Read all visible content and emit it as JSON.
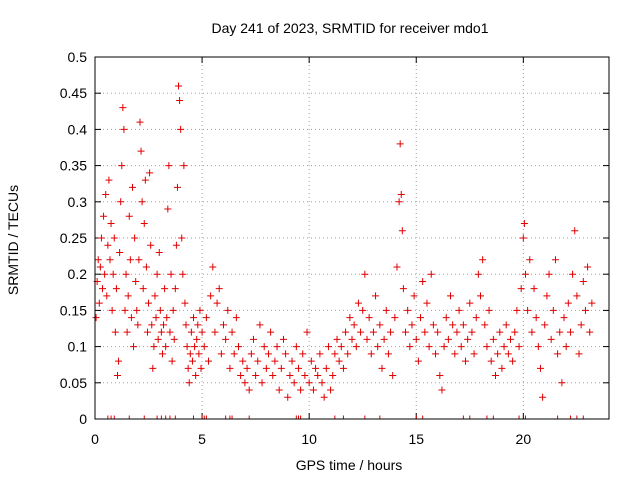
{
  "chart_data": {
    "type": "scatter",
    "title": "Day 241 of 2023, SRMTID for receiver mdo1",
    "xlabel": "GPS time / hours",
    "ylabel": "SRMTID / TECUs",
    "xlim": [
      0,
      24
    ],
    "ylim": [
      0,
      0.5
    ],
    "x_ticks": [
      "0",
      "5",
      "10",
      "15",
      "20"
    ],
    "y_ticks": [
      "0",
      "0.05",
      "0.1",
      "0.15",
      "0.2",
      "0.25",
      "0.3",
      "0.35",
      "0.4",
      "0.45",
      "0.5"
    ],
    "grid": true,
    "marker": "+",
    "series": [
      {
        "name": "SRMTID",
        "color": "#e00000",
        "points": [
          [
            0.05,
            0.14
          ],
          [
            0.1,
            0.19
          ],
          [
            0.15,
            0.22
          ],
          [
            0.2,
            0.16
          ],
          [
            0.25,
            0.21
          ],
          [
            0.3,
            0.25
          ],
          [
            0.35,
            0.18
          ],
          [
            0.4,
            0.28
          ],
          [
            0.45,
            0.2
          ],
          [
            0.5,
            0.31
          ],
          [
            0.55,
            0.17
          ],
          [
            0.6,
            0.24
          ],
          [
            0.65,
            0.33
          ],
          [
            0.7,
            0.22
          ],
          [
            0.75,
            0.27
          ],
          [
            0.8,
            0.15
          ],
          [
            0.85,
            0.2
          ],
          [
            0.9,
            0.25
          ],
          [
            0.95,
            0.12
          ],
          [
            1.0,
            0.18
          ],
          [
            1.05,
            0.06
          ],
          [
            1.1,
            0.08
          ],
          [
            1.15,
            0.23
          ],
          [
            1.2,
            0.3
          ],
          [
            1.25,
            0.35
          ],
          [
            1.3,
            0.43
          ],
          [
            1.35,
            0.4
          ],
          [
            1.4,
            0.15
          ],
          [
            1.45,
            0.2
          ],
          [
            1.5,
            0.12
          ],
          [
            1.55,
            0.17
          ],
          [
            1.6,
            0.28
          ],
          [
            1.65,
            0.22
          ],
          [
            1.7,
            0.14
          ],
          [
            1.75,
            0.32
          ],
          [
            1.8,
            0.1
          ],
          [
            1.85,
            0.25
          ],
          [
            1.9,
            0.19
          ],
          [
            1.95,
            0.15
          ],
          [
            2.0,
            0.13
          ],
          [
            2.05,
            0.22
          ],
          [
            2.1,
            0.41
          ],
          [
            2.15,
            0.37
          ],
          [
            2.2,
            0.3
          ],
          [
            2.25,
            0.18
          ],
          [
            2.3,
            0.27
          ],
          [
            2.35,
            0.33
          ],
          [
            2.4,
            0.21
          ],
          [
            2.45,
            0.12
          ],
          [
            2.5,
            0.16
          ],
          [
            2.55,
            0.34
          ],
          [
            2.6,
            0.24
          ],
          [
            2.65,
            0.13
          ],
          [
            2.7,
            0.07
          ],
          [
            2.75,
            0.1
          ],
          [
            2.8,
            0.17
          ],
          [
            2.85,
            0.14
          ],
          [
            2.9,
            0.2
          ],
          [
            2.95,
            0.11
          ],
          [
            3.0,
            0.23
          ],
          [
            3.05,
            0.15
          ],
          [
            3.1,
            0.12
          ],
          [
            3.15,
            0.09
          ],
          [
            3.2,
            0.13
          ],
          [
            3.25,
            0.18
          ],
          [
            3.3,
            0.1
          ],
          [
            3.35,
            0.14
          ],
          [
            3.4,
            0.29
          ],
          [
            3.45,
            0.35
          ],
          [
            3.5,
            0.12
          ],
          [
            3.55,
            0.2
          ],
          [
            3.6,
            0.08
          ],
          [
            3.65,
            0.15
          ],
          [
            3.7,
            0.11
          ],
          [
            3.75,
            0.18
          ],
          [
            3.8,
            0.24
          ],
          [
            3.85,
            0.32
          ],
          [
            3.9,
            0.46
          ],
          [
            3.95,
            0.44
          ],
          [
            4.0,
            0.4
          ],
          [
            4.05,
            0.25
          ],
          [
            4.1,
            0.2
          ],
          [
            4.15,
            0.35
          ],
          [
            4.2,
            0.16
          ],
          [
            4.25,
            0.13
          ],
          [
            4.3,
            0.1
          ],
          [
            4.35,
            0.07
          ],
          [
            4.4,
            0.05
          ],
          [
            4.45,
            0.09
          ],
          [
            4.5,
            0.12
          ],
          [
            4.55,
            0.08
          ],
          [
            4.6,
            0.14
          ],
          [
            4.65,
            0.1
          ],
          [
            4.7,
            0.06
          ],
          [
            4.75,
            0.11
          ],
          [
            4.8,
            0.13
          ],
          [
            4.85,
            0.09
          ],
          [
            4.9,
            0.15
          ],
          [
            4.95,
            0.07
          ],
          [
            5.0,
            0.12
          ],
          [
            5.1,
            0.1
          ],
          [
            5.2,
            0.14
          ],
          [
            5.3,
            0.08
          ],
          [
            5.4,
            0.17
          ],
          [
            5.5,
            0.21
          ],
          [
            5.6,
            0.12
          ],
          [
            5.7,
            0.16
          ],
          [
            5.8,
            0.18
          ],
          [
            5.9,
            0.09
          ],
          [
            6.0,
            0.13
          ],
          [
            6.1,
            0.11
          ],
          [
            6.2,
            0.15
          ],
          [
            6.3,
            0.07
          ],
          [
            6.4,
            0.12
          ],
          [
            6.5,
            0.09
          ],
          [
            6.6,
            0.14
          ],
          [
            6.7,
            0.1
          ],
          [
            6.8,
            0.06
          ],
          [
            6.9,
            0.08
          ],
          [
            7.0,
            0.05
          ],
          [
            7.1,
            0.07
          ],
          [
            7.2,
            0.04
          ],
          [
            7.3,
            0.09
          ],
          [
            7.4,
            0.11
          ],
          [
            7.5,
            0.06
          ],
          [
            7.6,
            0.08
          ],
          [
            7.7,
            0.13
          ],
          [
            7.8,
            0.05
          ],
          [
            7.9,
            0.1
          ],
          [
            8.0,
            0.07
          ],
          [
            8.1,
            0.09
          ],
          [
            8.2,
            0.12
          ],
          [
            8.3,
            0.06
          ],
          [
            8.4,
            0.08
          ],
          [
            8.5,
            0.1
          ],
          [
            8.6,
            0.04
          ],
          [
            8.7,
            0.07
          ],
          [
            8.8,
            0.11
          ],
          [
            8.9,
            0.09
          ],
          [
            9.0,
            0.03
          ],
          [
            9.1,
            0.06
          ],
          [
            9.2,
            0.08
          ],
          [
            9.3,
            0.05
          ],
          [
            9.4,
            0.1
          ],
          [
            9.5,
            0.07
          ],
          [
            9.6,
            0.04
          ],
          [
            9.7,
            0.09
          ],
          [
            9.8,
            0.06
          ],
          [
            9.9,
            0.12
          ],
          [
            10.0,
            0.05
          ],
          [
            10.1,
            0.08
          ],
          [
            10.2,
            0.04
          ],
          [
            10.3,
            0.07
          ],
          [
            10.4,
            0.06
          ],
          [
            10.5,
            0.09
          ],
          [
            10.6,
            0.05
          ],
          [
            10.7,
            0.03
          ],
          [
            10.8,
            0.07
          ],
          [
            10.9,
            0.1
          ],
          [
            11.0,
            0.04
          ],
          [
            11.1,
            0.06
          ],
          [
            11.2,
            0.09
          ],
          [
            11.3,
            0.11
          ],
          [
            11.4,
            0.08
          ],
          [
            11.5,
            0.1
          ],
          [
            11.6,
            0.07
          ],
          [
            11.7,
            0.12
          ],
          [
            11.8,
            0.09
          ],
          [
            11.9,
            0.14
          ],
          [
            12.0,
            0.11
          ],
          [
            12.1,
            0.13
          ],
          [
            12.2,
            0.1
          ],
          [
            12.3,
            0.16
          ],
          [
            12.4,
            0.12
          ],
          [
            12.5,
            0.15
          ],
          [
            12.6,
            0.2
          ],
          [
            12.7,
            0.11
          ],
          [
            12.8,
            0.14
          ],
          [
            12.9,
            0.09
          ],
          [
            13.0,
            0.12
          ],
          [
            13.1,
            0.17
          ],
          [
            13.2,
            0.1
          ],
          [
            13.3,
            0.13
          ],
          [
            13.4,
            0.07
          ],
          [
            13.5,
            0.11
          ],
          [
            13.6,
            0.15
          ],
          [
            13.7,
            0.09
          ],
          [
            13.8,
            0.12
          ],
          [
            13.9,
            0.06
          ],
          [
            14.0,
            0.14
          ],
          [
            14.1,
            0.21
          ],
          [
            14.2,
            0.3
          ],
          [
            14.25,
            0.38
          ],
          [
            14.3,
            0.31
          ],
          [
            14.35,
            0.26
          ],
          [
            14.4,
            0.18
          ],
          [
            14.5,
            0.12
          ],
          [
            14.6,
            0.15
          ],
          [
            14.7,
            0.1
          ],
          [
            14.8,
            0.13
          ],
          [
            14.9,
            0.17
          ],
          [
            15.0,
            0.11
          ],
          [
            15.1,
            0.08
          ],
          [
            15.2,
            0.14
          ],
          [
            15.3,
            0.19
          ],
          [
            15.4,
            0.12
          ],
          [
            15.5,
            0.16
          ],
          [
            15.6,
            0.1
          ],
          [
            15.7,
            0.2
          ],
          [
            15.8,
            0.13
          ],
          [
            15.9,
            0.09
          ],
          [
            16.0,
            0.12
          ],
          [
            16.1,
            0.06
          ],
          [
            16.2,
            0.04
          ],
          [
            16.3,
            0.1
          ],
          [
            16.4,
            0.14
          ],
          [
            16.5,
            0.11
          ],
          [
            16.6,
            0.17
          ],
          [
            16.7,
            0.13
          ],
          [
            16.8,
            0.09
          ],
          [
            16.9,
            0.12
          ],
          [
            17.0,
            0.15
          ],
          [
            17.1,
            0.1
          ],
          [
            17.2,
            0.13
          ],
          [
            17.3,
            0.08
          ],
          [
            17.4,
            0.11
          ],
          [
            17.5,
            0.16
          ],
          [
            17.6,
            0.12
          ],
          [
            17.7,
            0.09
          ],
          [
            17.8,
            0.14
          ],
          [
            17.9,
            0.2
          ],
          [
            18.0,
            0.17
          ],
          [
            18.1,
            0.22
          ],
          [
            18.2,
            0.13
          ],
          [
            18.3,
            0.1
          ],
          [
            18.4,
            0.15
          ],
          [
            18.5,
            0.08
          ],
          [
            18.6,
            0.11
          ],
          [
            18.7,
            0.06
          ],
          [
            18.8,
            0.09
          ],
          [
            18.9,
            0.12
          ],
          [
            19.0,
            0.07
          ],
          [
            19.1,
            0.1
          ],
          [
            19.2,
            0.13
          ],
          [
            19.3,
            0.09
          ],
          [
            19.4,
            0.11
          ],
          [
            19.5,
            0.08
          ],
          [
            19.6,
            0.12
          ],
          [
            19.7,
            0.15
          ],
          [
            19.8,
            0.1
          ],
          [
            19.9,
            0.18
          ],
          [
            20.0,
            0.25
          ],
          [
            20.05,
            0.27
          ],
          [
            20.1,
            0.2
          ],
          [
            20.2,
            0.15
          ],
          [
            20.3,
            0.22
          ],
          [
            20.4,
            0.12
          ],
          [
            20.5,
            0.18
          ],
          [
            20.6,
            0.14
          ],
          [
            20.7,
            0.1
          ],
          [
            20.8,
            0.07
          ],
          [
            20.9,
            0.03
          ],
          [
            21.0,
            0.13
          ],
          [
            21.1,
            0.17
          ],
          [
            21.2,
            0.2
          ],
          [
            21.3,
            0.11
          ],
          [
            21.4,
            0.15
          ],
          [
            21.5,
            0.22
          ],
          [
            21.6,
            0.09
          ],
          [
            21.7,
            0.12
          ],
          [
            21.8,
            0.05
          ],
          [
            21.9,
            0.14
          ],
          [
            22.0,
            0.1
          ],
          [
            22.1,
            0.16
          ],
          [
            22.2,
            0.12
          ],
          [
            22.3,
            0.2
          ],
          [
            22.4,
            0.26
          ],
          [
            22.5,
            0.17
          ],
          [
            22.6,
            0.09
          ],
          [
            22.7,
            0.13
          ],
          [
            22.8,
            0.19
          ],
          [
            22.9,
            0.15
          ],
          [
            23.0,
            0.21
          ],
          [
            23.1,
            0.12
          ],
          [
            23.2,
            0.16
          ]
        ]
      }
    ],
    "zero_markers_x": [
      0.6,
      0.75,
      0.9,
      1.6,
      2.3,
      2.9,
      3.1,
      3.3,
      3.5,
      3.75,
      4.6,
      5.0,
      5.1,
      5.2,
      6.1,
      6.3,
      6.4,
      7.2,
      9.4,
      9.5,
      9.6,
      11.2,
      11.6,
      12.6,
      13.3,
      15.0,
      15.3,
      17.2,
      17.5,
      18.3,
      18.6,
      19.8,
      20.1,
      21.6,
      22.2,
      22.5,
      22.8
    ]
  }
}
